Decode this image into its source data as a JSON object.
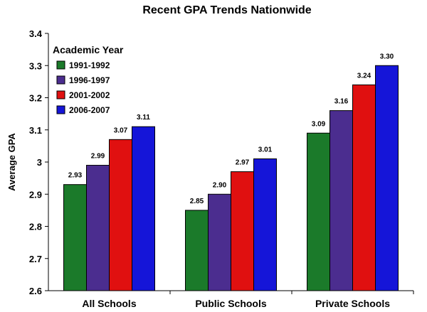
{
  "chart_data": {
    "type": "bar",
    "title": "Recent GPA Trends Nationwide",
    "xlabel": "",
    "ylabel": "Average GPA",
    "ylim": [
      2.6,
      3.4
    ],
    "yticks": [
      "2.6",
      "2.7",
      "2.8",
      "2.9",
      "3",
      "3.1",
      "3.2",
      "3.3",
      "3.4"
    ],
    "categories": [
      "All Schools",
      "Public Schools",
      "Private Schools"
    ],
    "legend_title": "Academic Year",
    "legend_position": "top-left",
    "grid": false,
    "series": [
      {
        "name": "1991-1992",
        "color": "#1b7a2a",
        "values": [
          2.93,
          2.85,
          3.09
        ],
        "labels": [
          "2.93",
          "2.85",
          "3.09"
        ]
      },
      {
        "name": "1996-1997",
        "color": "#4b2d8f",
        "values": [
          2.99,
          2.9,
          3.16
        ],
        "labels": [
          "2.99",
          "2.90",
          "3.16"
        ]
      },
      {
        "name": "2001-2002",
        "color": "#e01010",
        "values": [
          3.07,
          2.97,
          3.24
        ],
        "labels": [
          "3.07",
          "2.97",
          "3.24"
        ]
      },
      {
        "name": "2006-2007",
        "color": "#1515d8",
        "values": [
          3.11,
          3.01,
          3.3
        ],
        "labels": [
          "3.11",
          "3.01",
          "3.30"
        ]
      }
    ]
  }
}
